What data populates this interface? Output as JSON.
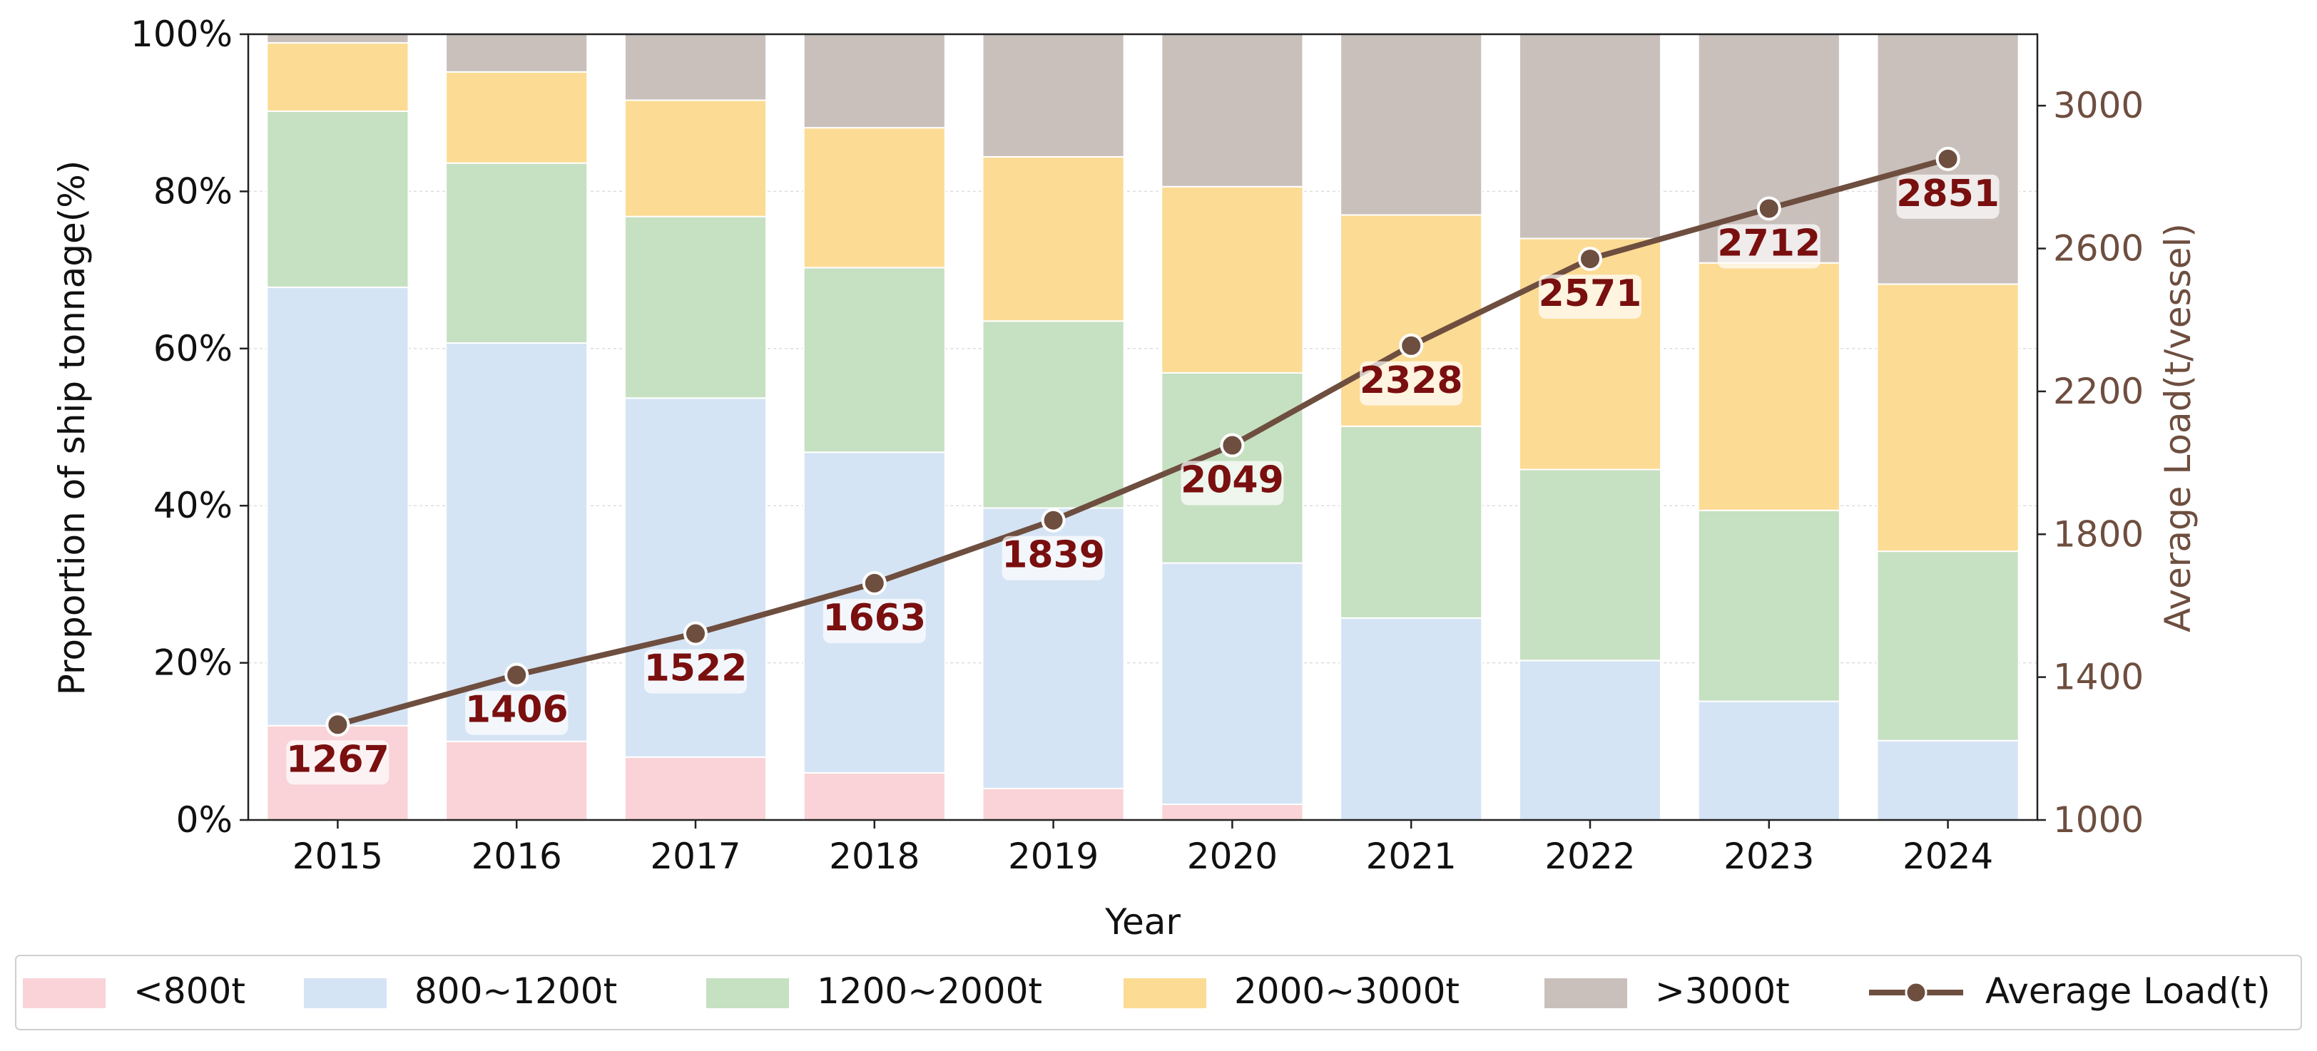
{
  "chart_data": {
    "type": "bar",
    "stacked": true,
    "categories": [
      "2015",
      "2016",
      "2017",
      "2018",
      "2019",
      "2020",
      "2021",
      "2022",
      "2023",
      "2024"
    ],
    "series": [
      {
        "name": "<800t",
        "color": "#f9d3d7",
        "values": [
          12,
          10,
          8,
          6,
          4,
          2,
          0,
          0,
          0,
          0
        ]
      },
      {
        "name": "800~1200t",
        "color": "#d5e4f4",
        "values": [
          55.8,
          50.7,
          45.7,
          40.8,
          35.7,
          30.7,
          25.7,
          20.3,
          15.1,
          10.1
        ]
      },
      {
        "name": "1200~2000t",
        "color": "#c6e0c2",
        "values": [
          22.4,
          22.9,
          23.1,
          23.5,
          23.8,
          24.2,
          24.4,
          24.3,
          24.3,
          24.1
        ]
      },
      {
        "name": "2000~3000t",
        "color": "#fcdb94",
        "values": [
          8.7,
          11.6,
          14.8,
          17.8,
          20.9,
          23.7,
          26.9,
          29.4,
          31.5,
          34.0
        ]
      },
      {
        "name": ">3000t",
        "color": "#c9c0bc",
        "values": [
          1.1,
          4.8,
          8.4,
          11.9,
          15.6,
          19.4,
          23.0,
          26.0,
          29.1,
          31.8
        ]
      }
    ],
    "line_series": {
      "name": "Average Load(t)",
      "color": "#6e4e3f",
      "label_color": "#7a0f0f",
      "values": [
        1267,
        1406,
        1522,
        1663,
        1839,
        2049,
        2328,
        2571,
        2712,
        2851
      ],
      "labels": [
        "1267",
        "1406",
        "1522",
        "1663",
        "1839",
        "2049",
        "2328",
        "2571",
        "2712",
        "2851"
      ]
    },
    "xlabel": "Year",
    "ylabel": "Proportion of ship tonnage(%)",
    "ylabel_right": "Average Load(t/vessel)",
    "ylim": [
      0,
      100
    ],
    "ylim_right": [
      1000,
      3200
    ],
    "yticks": [
      0,
      20,
      40,
      60,
      80,
      100
    ],
    "ytick_labels": [
      "0%",
      "20%",
      "40%",
      "60%",
      "80%",
      "100%"
    ],
    "yticks_right": [
      1000,
      1400,
      1800,
      2200,
      2600,
      3000
    ],
    "ytick_labels_right": [
      "1000",
      "1400",
      "1800",
      "2200",
      "2600",
      "3000"
    ],
    "right_axis_color": "#6e4e3f",
    "legend_position": "bottom",
    "grid": true
  }
}
